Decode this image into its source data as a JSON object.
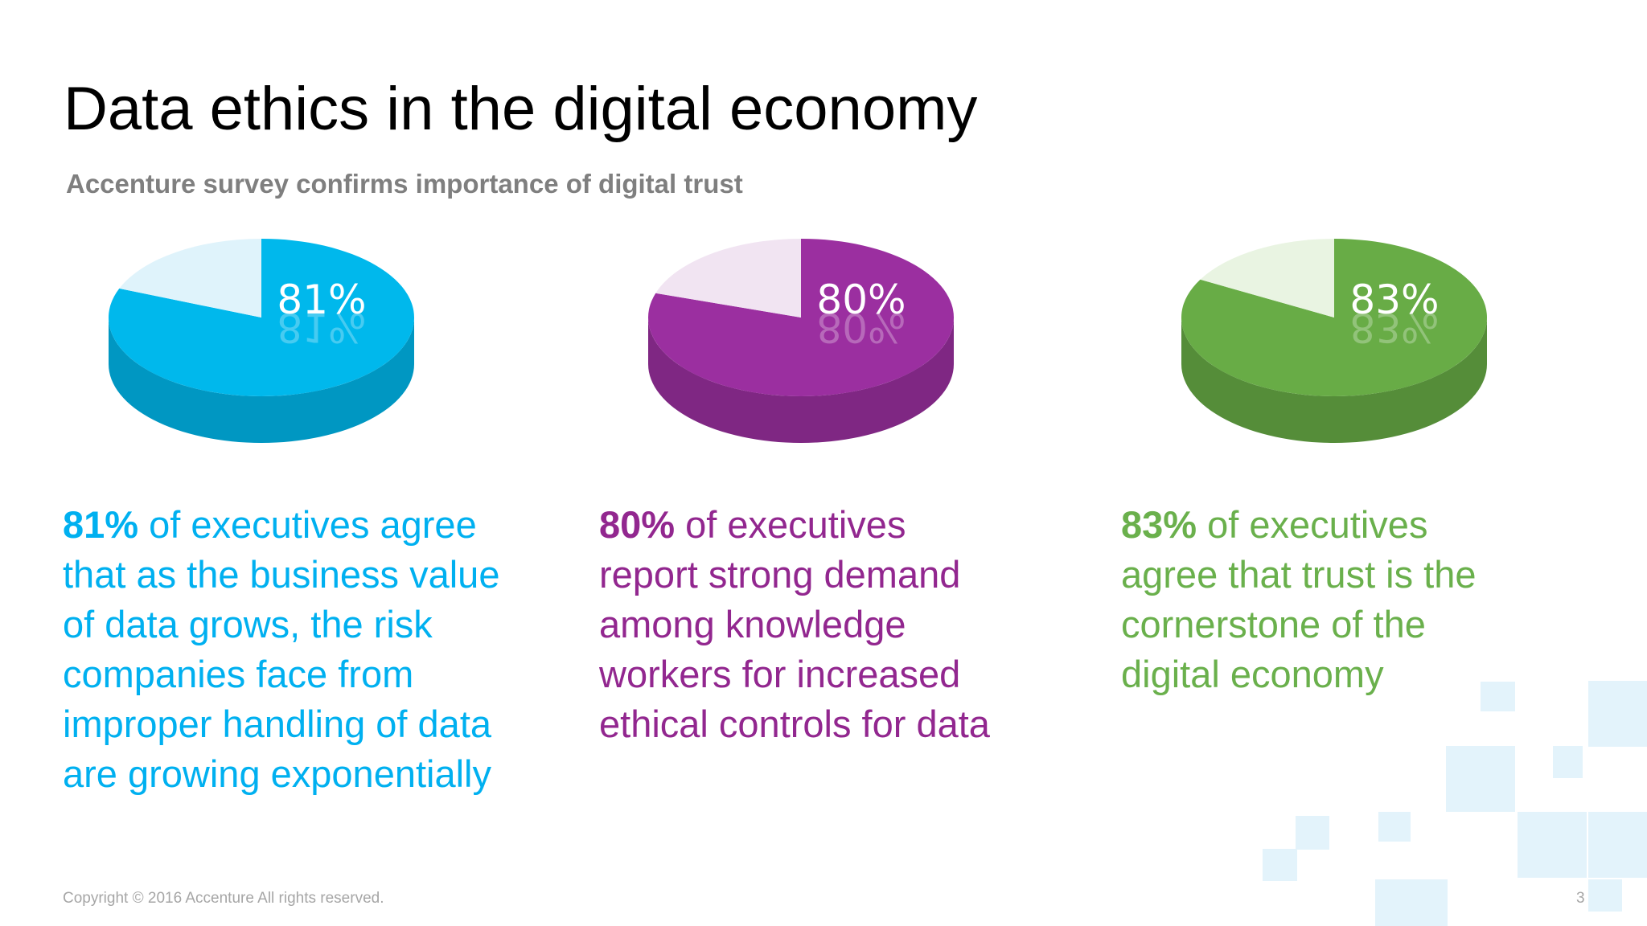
{
  "slide": {
    "title": "Data ethics in the digital economy",
    "subtitle": "Accenture survey confirms importance of digital trust",
    "footer": "Copyright © 2016 Accenture  All rights reserved.",
    "page_number": "3"
  },
  "stats": [
    {
      "percent": "81%",
      "text": " of executives agree that as the business value of data grows, the risk companies face from improper handling of data are growing exponentially",
      "lines": [
        "that as the business value",
        "of data grows, the risk",
        "companies face from",
        "improper handling of data",
        "are growing exponentially"
      ],
      "first_line_rest": " of executives agree",
      "color": "#00b0f0"
    },
    {
      "percent": "80%",
      "first_line_rest": " of executives",
      "lines": [
        "report strong demand",
        "among knowledge",
        "workers for increased",
        "ethical controls for data"
      ],
      "color": "#92278f"
    },
    {
      "percent": "83%",
      "first_line_rest": " of executives",
      "lines": [
        "agree that trust is the",
        "cornerstone of the",
        "digital economy"
      ],
      "color": "#6ab04c"
    }
  ],
  "chart_data": [
    {
      "type": "pie",
      "label": "81%",
      "values": [
        81,
        19
      ],
      "colors": [
        "#00b8ec",
        "#dff3fb"
      ]
    },
    {
      "type": "pie",
      "label": "80%",
      "values": [
        80,
        20
      ],
      "colors": [
        "#9b2fa0",
        "#f1e4f2"
      ]
    },
    {
      "type": "pie",
      "label": "83%",
      "values": [
        83,
        17
      ],
      "colors": [
        "#68ac46",
        "#e9f4e2"
      ]
    }
  ]
}
